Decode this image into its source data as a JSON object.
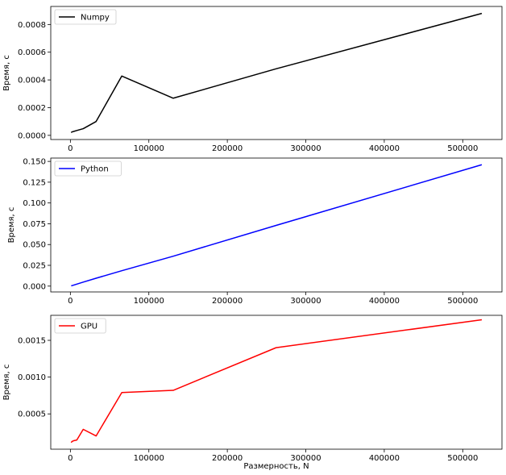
{
  "chart_data": [
    {
      "type": "line",
      "xlabel": "",
      "ylabel": "Время, с",
      "xlim": [
        -25000,
        550000
      ],
      "ylim": [
        -3e-05,
        0.00093
      ],
      "xticks": [
        0,
        100000,
        200000,
        300000,
        400000,
        500000
      ],
      "xtick_labels": [
        "0",
        "100000",
        "200000",
        "300000",
        "400000",
        "500000"
      ],
      "yticks": [
        0,
        0.0002,
        0.0004,
        0.0006,
        0.0008
      ],
      "ytick_labels": [
        "0.0000",
        "0.0002",
        "0.0004",
        "0.0006",
        "0.0008"
      ],
      "legend": "top-left",
      "grid": false,
      "series": [
        {
          "name": "Numpy",
          "color": "#000000",
          "x": [
            1024,
            2048,
            4096,
            8192,
            16384,
            32768,
            65536,
            131072,
            262144,
            524288
          ],
          "y": [
            2e-05,
            2.5e-05,
            2.8e-05,
            3.5e-05,
            4.8e-05,
            0.0001,
            0.000428,
            0.000268,
            0.00048,
            0.00088
          ]
        }
      ]
    },
    {
      "type": "line",
      "xlabel": "",
      "ylabel": "Время, с",
      "xlim": [
        -25000,
        550000
      ],
      "ylim": [
        -0.007,
        0.154
      ],
      "xticks": [
        0,
        100000,
        200000,
        300000,
        400000,
        500000
      ],
      "xtick_labels": [
        "0",
        "100000",
        "200000",
        "300000",
        "400000",
        "500000"
      ],
      "yticks": [
        0,
        0.025,
        0.05,
        0.075,
        0.1,
        0.125,
        0.15
      ],
      "ytick_labels": [
        "0.000",
        "0.025",
        "0.050",
        "0.075",
        "0.100",
        "0.125",
        "0.150"
      ],
      "legend": "top-left",
      "grid": false,
      "series": [
        {
          "name": "Python",
          "color": "#0000ff",
          "x": [
            1024,
            2048,
            4096,
            8192,
            16384,
            32768,
            65536,
            131072,
            262144,
            524288
          ],
          "y": [
            0.0003,
            0.0006,
            0.0012,
            0.0024,
            0.0048,
            0.0095,
            0.0185,
            0.036,
            0.073,
            0.146
          ]
        }
      ]
    },
    {
      "type": "line",
      "xlabel": "Размерность, N",
      "ylabel": "Время, с",
      "xlim": [
        -25000,
        550000
      ],
      "ylim": [
        2e-05,
        0.00184
      ],
      "xticks": [
        0,
        100000,
        200000,
        300000,
        400000,
        500000
      ],
      "xtick_labels": [
        "0",
        "100000",
        "200000",
        "300000",
        "400000",
        "500000"
      ],
      "yticks": [
        0.0005,
        0.001,
        0.0015
      ],
      "ytick_labels": [
        "0.0005",
        "0.0010",
        "0.0015"
      ],
      "legend": "top-left",
      "grid": false,
      "series": [
        {
          "name": "GPU",
          "color": "#ff0000",
          "x": [
            1024,
            2048,
            4096,
            8192,
            16384,
            32768,
            65536,
            131072,
            262144,
            524288
          ],
          "y": [
            0.00011,
            0.000125,
            0.000135,
            0.000145,
            0.00029,
            0.0002,
            0.00079,
            0.00082,
            0.0014,
            0.00178
          ]
        }
      ]
    }
  ]
}
